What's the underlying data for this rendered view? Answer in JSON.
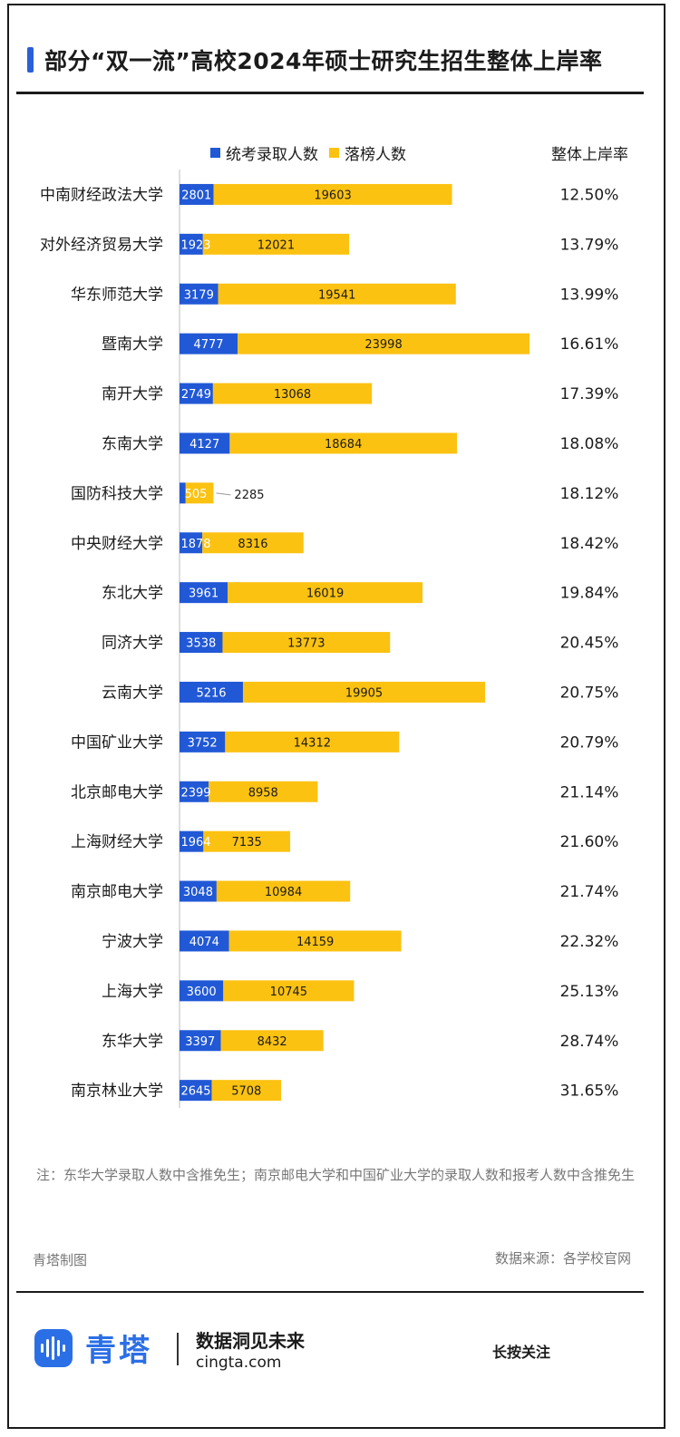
{
  "title": "部分“双一流”高校2024年硕士研究生招生整体上岸率",
  "legend": {
    "admitted_label": "统考录取人数",
    "failed_label": "落榜人数",
    "rate_header": "整体上岸率"
  },
  "colors": {
    "admitted": "#2158d6",
    "failed": "#fcc212",
    "accent": "#2b6fe6"
  },
  "chart_data": {
    "type": "bar",
    "orientation": "horizontal",
    "stacked": true,
    "title": "部分“双一流”高校2024年硕士研究生招生整体上岸率",
    "categories": [
      "中南财经政法大学",
      "对外经济贸易大学",
      "华东师范大学",
      "暨南大学",
      "南开大学",
      "东南大学",
      "国防科技大学",
      "中央财经大学",
      "东北大学",
      "同济大学",
      "云南大学",
      "中国矿业大学",
      "北京邮电大学",
      "上海财经大学",
      "南京邮电大学",
      "宁波大学",
      "上海大学",
      "东华大学",
      "南京林业大学"
    ],
    "series": [
      {
        "name": "统考录取人数",
        "values": [
          2801,
          1923,
          3179,
          4777,
          2749,
          4127,
          505,
          1878,
          3961,
          3538,
          5216,
          3752,
          2399,
          1964,
          3048,
          4074,
          3600,
          3397,
          2645
        ]
      },
      {
        "name": "落榜人数",
        "values": [
          19603,
          12021,
          19541,
          23998,
          13068,
          18684,
          2285,
          8316,
          16019,
          13773,
          19905,
          14312,
          8958,
          7135,
          10984,
          14159,
          10745,
          8432,
          5708
        ]
      }
    ],
    "rates": [
      "12.50%",
      "13.79%",
      "13.99%",
      "16.61%",
      "17.39%",
      "18.08%",
      "18.12%",
      "18.42%",
      "19.84%",
      "20.45%",
      "20.75%",
      "20.79%",
      "21.14%",
      "21.60%",
      "21.74%",
      "22.32%",
      "25.13%",
      "28.74%",
      "31.65%"
    ],
    "xlim": [
      0,
      28775
    ],
    "grid": false,
    "legend_position": "top"
  },
  "note": "注：东华大学录取人数中含推免生；南京邮电大学和中国矿业大学的录取人数和报考人数中含推免生",
  "maker": "青塔制图",
  "source": "数据来源：各学校官网",
  "footer": {
    "brand": "青塔",
    "slogan": "数据洞见未来",
    "site": "cingta.com",
    "follow": "长按关注"
  }
}
